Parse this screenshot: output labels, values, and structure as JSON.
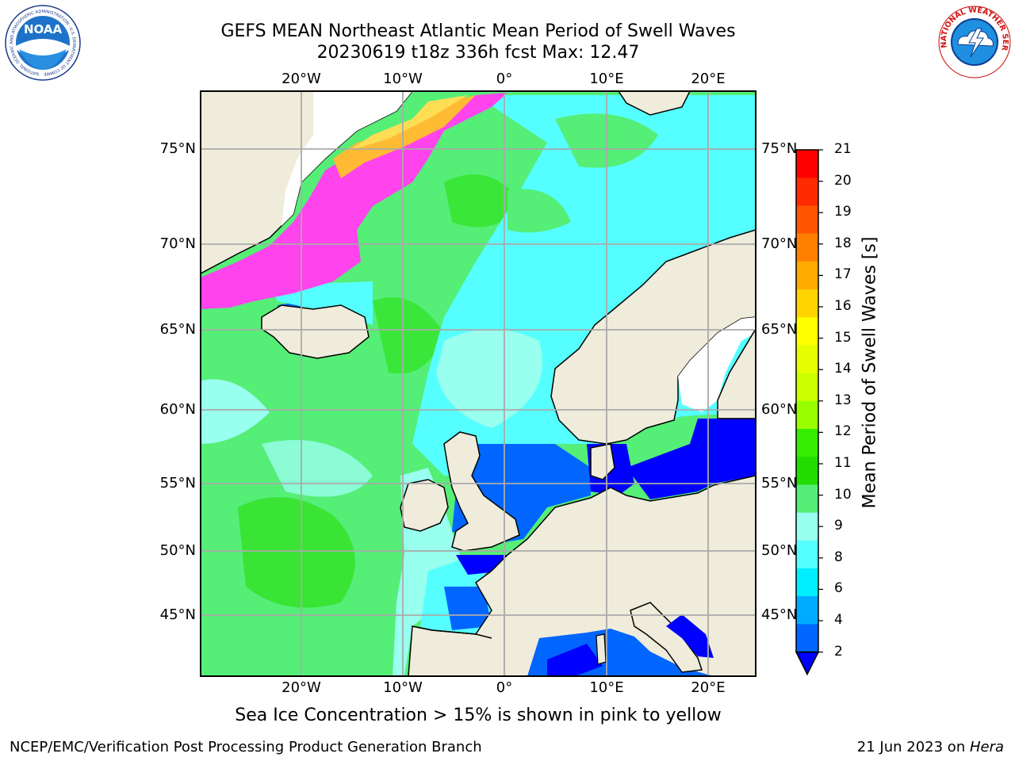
{
  "title": {
    "line1": "GEFS MEAN Northeast Atlantic Mean Period of Swell Waves",
    "line2": "20230619 t18z 336h fcst   Max: 12.47"
  },
  "longitude_labels": [
    "20°W",
    "10°W",
    "0°",
    "10°E",
    "20°E"
  ],
  "latitude_labels": [
    "75°N",
    "70°N",
    "65°N",
    "60°N",
    "55°N",
    "50°N",
    "45°N"
  ],
  "colorbar": {
    "label": "Mean Period of Swell Waves [s]",
    "ticks": [
      "21",
      "20",
      "19",
      "18",
      "17",
      "16",
      "15",
      "14",
      "13",
      "12",
      "11",
      "10",
      "9",
      "8",
      "6",
      "4",
      "2"
    ],
    "colors": [
      "#ff0000",
      "#ff2a00",
      "#ff5500",
      "#ff8000",
      "#ffaa00",
      "#ffd400",
      "#ffff00",
      "#e6ff00",
      "#ccff00",
      "#99ff00",
      "#33ee00",
      "#22dd00",
      "#55ee77",
      "#99ffee",
      "#55ffff",
      "#00eeff",
      "#00aaff",
      "#0066ff"
    ],
    "extend_color": "#0000ff"
  },
  "caption": "Sea Ice Concentration > 15% is shown in pink to yellow",
  "footer": {
    "left": "NCEP/EMC/Verification Post Processing Product Generation Branch",
    "right_prefix": "21 Jun 2023 on ",
    "right_host": "Hera"
  },
  "logos": {
    "left": {
      "text": "NOAA",
      "ring": "NATIONAL OCEANIC AND ATMOSPHERIC ADMINISTRATION · U.S. DEPARTMENT OF COMMERCE"
    },
    "right": {
      "ring": "NATIONAL WEATHER SERVICE"
    }
  },
  "colors": {
    "land": "#efecdc",
    "sea_green": "#55ee77",
    "sea_cyan": "#55ffff",
    "sea_light": "#99ffee",
    "sea_blue": "#0066ff",
    "sea_deep": "#0000ff",
    "ice_pink": "#ff44ee",
    "ice_orange": "#ffbb33",
    "grid": "#aaaaaa"
  }
}
